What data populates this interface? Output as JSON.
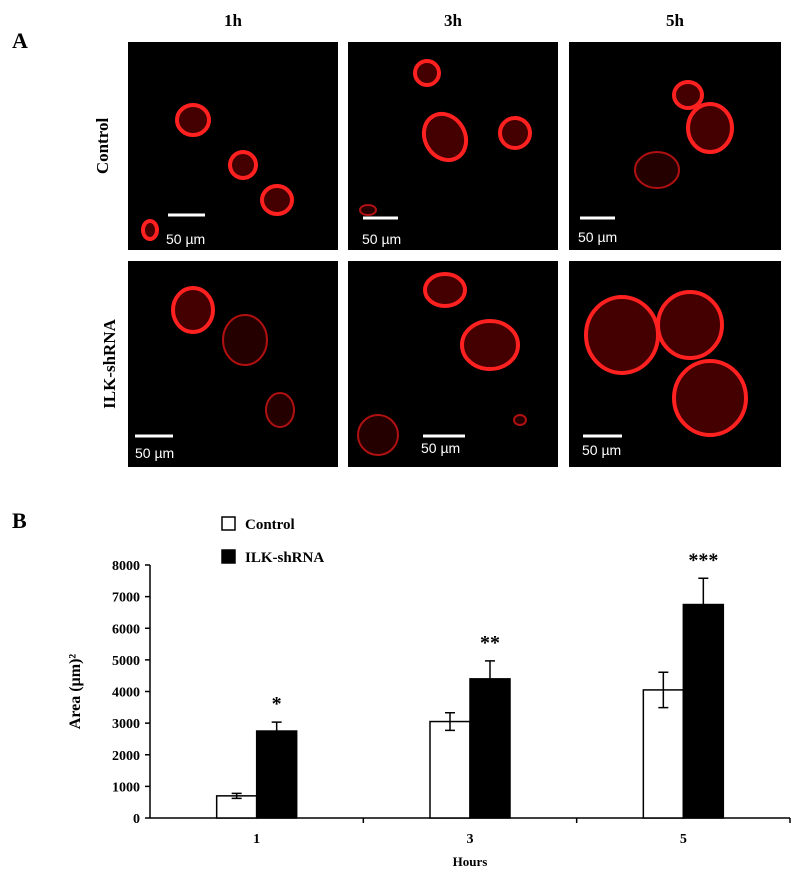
{
  "panel_a": {
    "label": "A",
    "columns": [
      "1h",
      "3h",
      "5h"
    ],
    "rows": [
      "Control",
      "ILK-shRNA"
    ],
    "scale_labels": [
      "50 µm",
      "50 µm",
      "50 µm",
      "50 µm",
      "50 µm",
      "50 µm"
    ]
  },
  "chart_data": {
    "type": "bar",
    "panel_label": "B",
    "y_label": "Area (µm)²",
    "x_label": "Hours",
    "categories": [
      "1",
      "3",
      "5"
    ],
    "series": [
      {
        "name": "Control",
        "color": "#ffffff",
        "values": [
          700,
          3050,
          4050
        ],
        "errors": [
          80,
          280,
          560
        ]
      },
      {
        "name": "ILK-shRNA",
        "color": "#000000",
        "values": [
          2750,
          4400,
          6750
        ],
        "errors": [
          280,
          570,
          830
        ]
      }
    ],
    "annotations": [
      "*",
      "**",
      "***"
    ],
    "ylim": [
      0,
      8000
    ],
    "yticks": [
      0,
      1000,
      2000,
      3000,
      4000,
      5000,
      6000,
      7000,
      8000
    ]
  }
}
